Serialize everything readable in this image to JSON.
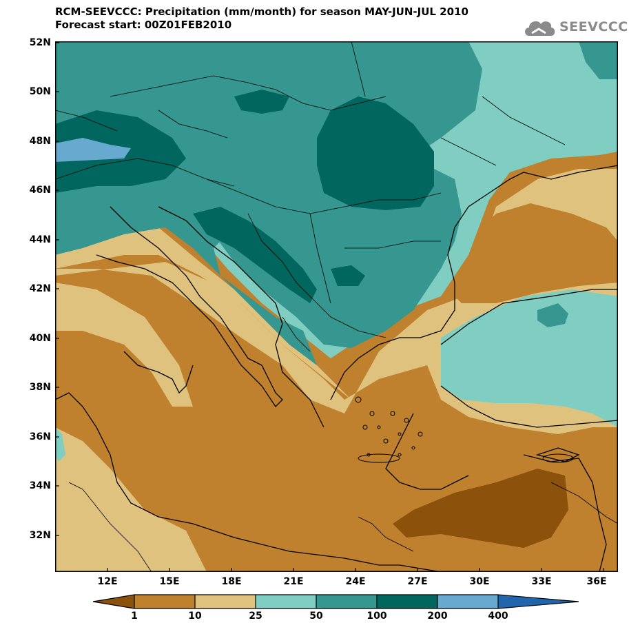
{
  "title": {
    "line1": "RCM-SEEVCCC: Precipitation (mm/month) for season MAY-JUN-JUL 2010",
    "line2": "Forecast start: 00Z01FEB2010"
  },
  "logo": {
    "text": "SEEVCCC",
    "icon": "cloud-icon",
    "color": "#8a8a8a"
  },
  "map": {
    "lat_labels": [
      "52N",
      "50N",
      "48N",
      "46N",
      "44N",
      "42N",
      "40N",
      "38N",
      "36N",
      "34N",
      "32N"
    ],
    "lon_labels": [
      "12E",
      "15E",
      "18E",
      "21E",
      "24E",
      "27E",
      "30E",
      "33E",
      "36E"
    ],
    "extent": {
      "lon": [
        9.5,
        36.5
      ],
      "lat": [
        30.5,
        52
      ]
    }
  },
  "legend": {
    "thresholds": [
      "1",
      "10",
      "25",
      "50",
      "100",
      "200",
      "400"
    ],
    "colors": [
      "#8c510a",
      "#bf812d",
      "#dfc27d",
      "#80cdc1",
      "#35978f",
      "#01665e",
      "#67a9cf",
      "#2166ac"
    ]
  }
}
